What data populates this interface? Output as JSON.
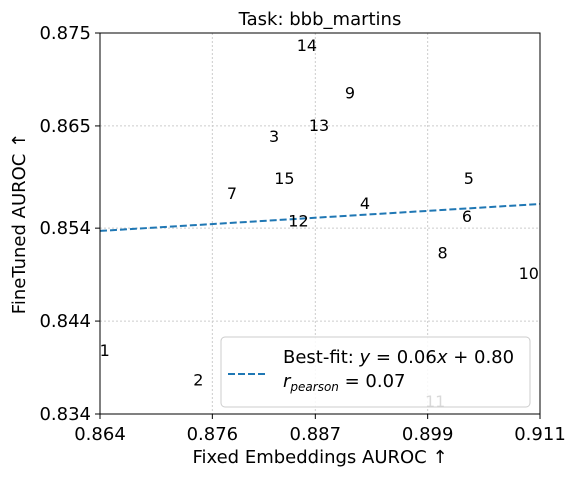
{
  "chart_data": {
    "type": "scatter",
    "title": "Task: bbb_martins",
    "xlabel": "Fixed Embeddings AUROC ↑",
    "ylabel": "FineTuned AUROC ↑",
    "xlim": [
      0.864,
      0.911
    ],
    "ylim": [
      0.834,
      0.875
    ],
    "xticks": [
      0.864,
      0.876,
      0.887,
      0.899,
      0.911
    ],
    "yticks": [
      0.834,
      0.844,
      0.854,
      0.865,
      0.875
    ],
    "xtick_labels": [
      "0.864",
      "0.876",
      "0.887",
      "0.899",
      "0.911"
    ],
    "ytick_labels": [
      "0.834",
      "0.844",
      "0.854",
      "0.865",
      "0.875"
    ],
    "grid": true,
    "points": [
      {
        "label": "1",
        "x": 0.8645,
        "y": 0.8409
      },
      {
        "label": "2",
        "x": 0.8745,
        "y": 0.8377
      },
      {
        "label": "3",
        "x": 0.8826,
        "y": 0.8639
      },
      {
        "label": "4",
        "x": 0.8923,
        "y": 0.8567
      },
      {
        "label": "5",
        "x": 0.9034,
        "y": 0.8594
      },
      {
        "label": "6",
        "x": 0.9032,
        "y": 0.8553
      },
      {
        "label": "7",
        "x": 0.8781,
        "y": 0.8578
      },
      {
        "label": "8",
        "x": 0.9006,
        "y": 0.8514
      },
      {
        "label": "9",
        "x": 0.8907,
        "y": 0.8686
      },
      {
        "label": "10",
        "x": 0.9098,
        "y": 0.8492
      },
      {
        "label": "11",
        "x": 0.8998,
        "y": 0.8354
      },
      {
        "label": "12",
        "x": 0.8852,
        "y": 0.8548
      },
      {
        "label": "13",
        "x": 0.8874,
        "y": 0.8651
      },
      {
        "label": "14",
        "x": 0.8861,
        "y": 0.8737
      },
      {
        "label": "15",
        "x": 0.8837,
        "y": 0.8594
      }
    ],
    "fit_line": {
      "x": [
        0.864,
        0.911
      ],
      "y": [
        0.8537,
        0.8566
      ],
      "color": "#1f77b4",
      "style": "dashed"
    },
    "legend": {
      "position": "lower-right",
      "line1": "Best-fit: y = 0.06x + 0.80",
      "line2": "r_pearson = 0.07"
    }
  },
  "legend_parts": {
    "prefix": "Best-fit: ",
    "y": "y",
    "equation": " = 0.06",
    "x": "x",
    "tail": " + 0.80",
    "r": "r",
    "r_sub": "pearson",
    "r_value": " = 0.07"
  }
}
